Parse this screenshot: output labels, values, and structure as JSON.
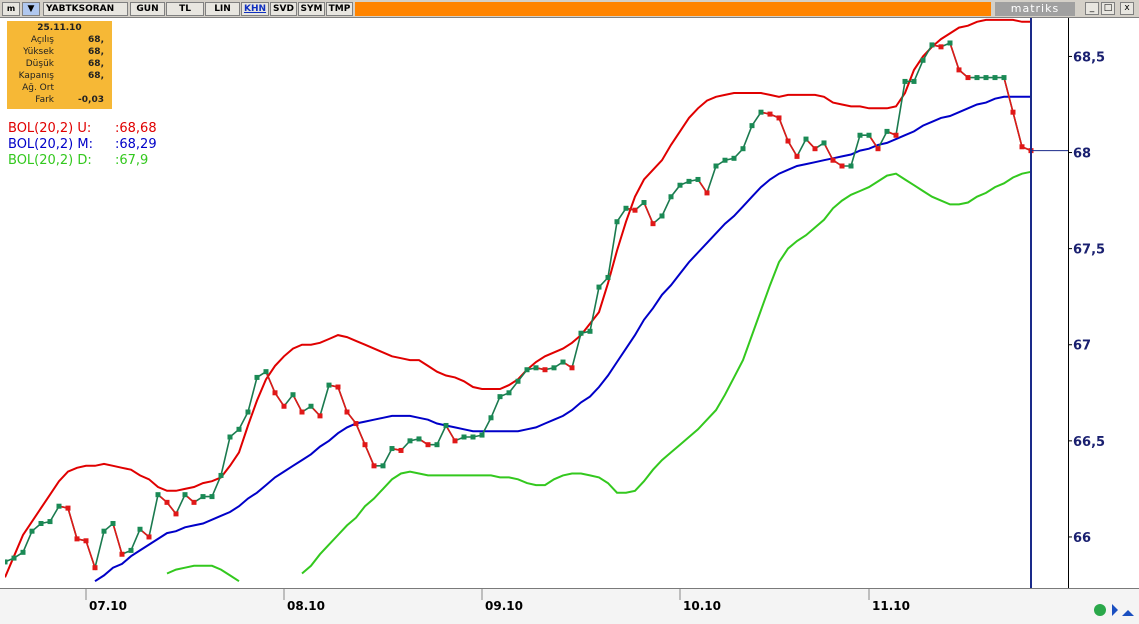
{
  "toolbar": {
    "symbol": "YABTKSORAN",
    "tabs": [
      "GUN",
      "TL",
      "LIN",
      "KHN",
      "SVD",
      "SYM",
      "TMP"
    ],
    "brand": "matriks"
  },
  "info_box": {
    "date": "25.11.10",
    "rows": [
      {
        "label": "Açılış",
        "value": "68,"
      },
      {
        "label": "Yüksek",
        "value": "68,"
      },
      {
        "label": "Düşük",
        "value": "68,"
      },
      {
        "label": "Kapanış",
        "value": "68,"
      },
      {
        "label": "Ağ. Ort"
      },
      {
        "label": "Fark",
        "value": "-0,03"
      }
    ]
  },
  "chart_data": {
    "type": "line",
    "categories": [
      null,
      null,
      null,
      null,
      null,
      null,
      null,
      null,
      null,
      "07.10",
      null,
      null,
      null,
      null,
      null,
      null,
      null,
      null,
      null,
      null,
      null,
      null,
      null,
      null,
      null,
      null,
      null,
      null,
      null,
      null,
      null,
      "08.10",
      null,
      null,
      null,
      null,
      null,
      null,
      null,
      null,
      null,
      null,
      null,
      null,
      null,
      null,
      null,
      null,
      null,
      null,
      null,
      null,
      null,
      "09.10",
      null,
      null,
      null,
      null,
      null,
      null,
      null,
      null,
      null,
      null,
      null,
      null,
      null,
      null,
      null,
      null,
      null,
      null,
      null,
      null,
      null,
      "10.10",
      null,
      null,
      null,
      null,
      null,
      null,
      null,
      null,
      null,
      null,
      null,
      null,
      null,
      null,
      null,
      null,
      null,
      null,
      null,
      null,
      "11.10",
      null,
      null,
      null,
      null,
      null,
      null,
      null,
      null,
      null,
      null,
      null,
      null,
      null,
      null,
      null,
      null,
      null,
      null
    ],
    "series": [
      {
        "color": "#1b7a4f",
        "up_color": "#1a8a55",
        "down_color": "#e01818",
        "values": [
          65.87,
          65.89,
          65.92,
          66.03,
          66.07,
          66.08,
          66.16,
          66.15,
          65.99,
          65.98,
          65.84,
          66.03,
          66.07,
          65.91,
          65.93,
          66.04,
          66.0,
          66.22,
          66.18,
          66.12,
          66.22,
          66.18,
          66.21,
          66.21,
          66.32,
          66.52,
          66.56,
          66.65,
          66.83,
          66.86,
          66.75,
          66.68,
          66.74,
          66.65,
          66.68,
          66.63,
          66.79,
          66.78,
          66.65,
          66.59,
          66.48,
          66.37,
          66.37,
          66.46,
          66.45,
          66.5,
          66.51,
          66.48,
          66.48,
          66.58,
          66.5,
          66.52,
          66.52,
          66.53,
          66.62,
          66.73,
          66.75,
          66.81,
          66.87,
          66.88,
          66.87,
          66.88,
          66.91,
          66.88,
          67.06,
          67.07,
          67.3,
          67.35,
          67.64,
          67.71,
          67.7,
          67.74,
          67.63,
          67.67,
          67.77,
          67.83,
          67.85,
          67.86,
          67.79,
          67.93,
          67.96,
          67.97,
          68.02,
          68.14,
          68.21,
          68.2,
          68.18,
          68.06,
          67.98,
          68.07,
          68.02,
          68.05,
          67.96,
          67.93,
          67.93,
          68.09,
          68.09,
          68.02,
          68.11,
          68.09,
          68.37,
          68.37,
          68.48,
          68.56,
          68.55,
          68.57,
          68.43,
          68.39,
          68.39,
          68.39,
          68.39,
          68.39,
          68.21,
          68.03,
          68.01
        ]
      },
      {
        "name": "BOL(20,2) U:",
        "color": "#e00000",
        "values": [
          65.79,
          65.9,
          66.01,
          66.08,
          66.15,
          66.22,
          66.29,
          66.34,
          66.36,
          66.37,
          66.37,
          66.38,
          66.37,
          66.36,
          66.35,
          66.32,
          66.3,
          66.26,
          66.24,
          66.24,
          66.25,
          66.26,
          66.28,
          66.29,
          66.31,
          66.37,
          66.44,
          66.58,
          66.71,
          66.82,
          66.89,
          66.94,
          66.98,
          67.0,
          67.0,
          67.01,
          67.03,
          67.05,
          67.04,
          67.02,
          67.0,
          66.98,
          66.96,
          66.94,
          66.93,
          66.92,
          66.92,
          66.89,
          66.86,
          66.84,
          66.83,
          66.81,
          66.78,
          66.77,
          66.77,
          66.77,
          66.79,
          66.82,
          66.87,
          66.91,
          66.94,
          66.96,
          66.98,
          67.01,
          67.05,
          67.11,
          67.17,
          67.32,
          67.49,
          67.64,
          67.77,
          67.86,
          67.91,
          67.96,
          68.04,
          68.11,
          68.18,
          68.23,
          68.27,
          68.29,
          68.3,
          68.31,
          68.31,
          68.31,
          68.31,
          68.3,
          68.29,
          68.3,
          68.3,
          68.3,
          68.3,
          68.29,
          68.26,
          68.25,
          68.24,
          68.24,
          68.23,
          68.23,
          68.23,
          68.24,
          68.31,
          68.43,
          68.5,
          68.55,
          68.59,
          68.62,
          68.65,
          68.66,
          68.68,
          68.69,
          68.69,
          68.69,
          68.69,
          68.68,
          68.68
        ],
        "value_labels": [
          null,
          null,
          null,
          null,
          null,
          null,
          null,
          null,
          null,
          null,
          null,
          null,
          null,
          null,
          null,
          null,
          null,
          null,
          null,
          null,
          null,
          null,
          null,
          null,
          null,
          null,
          null,
          null,
          null,
          null,
          null,
          null,
          null,
          null,
          null,
          null,
          null,
          null,
          null,
          null,
          null,
          null,
          null,
          null,
          null,
          null,
          null,
          null,
          null,
          null,
          null,
          null,
          null,
          null,
          null,
          null,
          null,
          null,
          null,
          null,
          null,
          null,
          null,
          null,
          null,
          null,
          null,
          null,
          null,
          null,
          null,
          null,
          null,
          null,
          null,
          null,
          null,
          null,
          null,
          null,
          null,
          null,
          null,
          null,
          null,
          null,
          null,
          null,
          null,
          null,
          null,
          null,
          null,
          null,
          null,
          null,
          null,
          null,
          null,
          null,
          null,
          null,
          null,
          null,
          null,
          null,
          null,
          null,
          null,
          null,
          null,
          null,
          null,
          null,
          ":68,68"
        ]
      },
      {
        "name": "BOL(20,2) M:",
        "color": "#0000c8",
        "values": [
          null,
          null,
          null,
          null,
          null,
          null,
          null,
          null,
          null,
          null,
          65.77,
          65.8,
          65.84,
          65.86,
          65.9,
          65.93,
          65.96,
          65.99,
          66.02,
          66.03,
          66.05,
          66.06,
          66.07,
          66.09,
          66.11,
          66.13,
          66.16,
          66.2,
          66.23,
          66.27,
          66.31,
          66.34,
          66.37,
          66.4,
          66.43,
          66.47,
          66.5,
          66.54,
          66.57,
          66.59,
          66.6,
          66.61,
          66.62,
          66.63,
          66.63,
          66.63,
          66.62,
          66.61,
          66.59,
          66.58,
          66.57,
          66.56,
          66.55,
          66.55,
          66.55,
          66.55,
          66.55,
          66.55,
          66.56,
          66.57,
          66.59,
          66.61,
          66.63,
          66.66,
          66.7,
          66.73,
          66.78,
          66.84,
          66.91,
          66.98,
          67.05,
          67.13,
          67.19,
          67.26,
          67.31,
          67.37,
          67.43,
          67.48,
          67.53,
          67.58,
          67.63,
          67.67,
          67.72,
          67.77,
          67.82,
          67.86,
          67.89,
          67.91,
          67.93,
          67.94,
          67.95,
          67.96,
          67.97,
          67.98,
          67.99,
          68.01,
          68.02,
          68.04,
          68.05,
          68.07,
          68.09,
          68.11,
          68.14,
          68.16,
          68.18,
          68.19,
          68.21,
          68.23,
          68.25,
          68.26,
          68.28,
          68.29,
          68.29,
          68.29,
          68.29
        ],
        "value_labels": [
          null,
          null,
          null,
          null,
          null,
          null,
          null,
          null,
          null,
          null,
          null,
          null,
          null,
          null,
          null,
          null,
          null,
          null,
          null,
          null,
          null,
          null,
          null,
          null,
          null,
          null,
          null,
          null,
          null,
          null,
          null,
          null,
          null,
          null,
          null,
          null,
          null,
          null,
          null,
          null,
          null,
          null,
          null,
          null,
          null,
          null,
          null,
          null,
          null,
          null,
          null,
          null,
          null,
          null,
          null,
          null,
          null,
          null,
          null,
          null,
          null,
          null,
          null,
          null,
          null,
          null,
          null,
          null,
          null,
          null,
          null,
          null,
          null,
          null,
          null,
          null,
          null,
          null,
          null,
          null,
          null,
          null,
          null,
          null,
          null,
          null,
          null,
          null,
          null,
          null,
          null,
          null,
          null,
          null,
          null,
          null,
          null,
          null,
          null,
          null,
          null,
          null,
          null,
          null,
          null,
          null,
          null,
          null,
          null,
          null,
          null,
          null,
          null,
          null,
          ":68,29"
        ]
      },
      {
        "name": "BOL(20,2) D:",
        "color": "#33c81e",
        "values": [
          null,
          null,
          null,
          null,
          null,
          null,
          null,
          null,
          null,
          null,
          null,
          null,
          null,
          null,
          null,
          null,
          null,
          null,
          65.81,
          65.83,
          65.84,
          65.85,
          65.85,
          65.85,
          65.83,
          65.8,
          65.77,
          null,
          null,
          null,
          null,
          null,
          null,
          65.81,
          65.85,
          65.91,
          65.96,
          66.01,
          66.06,
          66.1,
          66.16,
          66.2,
          66.25,
          66.3,
          66.33,
          66.34,
          66.33,
          66.32,
          66.32,
          66.32,
          66.32,
          66.32,
          66.32,
          66.32,
          66.32,
          66.31,
          66.31,
          66.3,
          66.28,
          66.27,
          66.27,
          66.3,
          66.32,
          66.33,
          66.33,
          66.32,
          66.31,
          66.28,
          66.23,
          66.23,
          66.24,
          66.29,
          66.35,
          66.4,
          66.44,
          66.48,
          66.52,
          66.56,
          66.61,
          66.66,
          66.74,
          66.83,
          66.92,
          67.05,
          67.18,
          67.31,
          67.43,
          67.5,
          67.54,
          67.57,
          67.61,
          67.65,
          67.71,
          67.75,
          67.78,
          67.8,
          67.82,
          67.85,
          67.88,
          67.89,
          67.86,
          67.83,
          67.8,
          67.77,
          67.75,
          67.73,
          67.73,
          67.74,
          67.77,
          67.79,
          67.82,
          67.84,
          67.87,
          67.89,
          67.9
        ],
        "value_labels": [
          null,
          null,
          null,
          null,
          null,
          null,
          null,
          null,
          null,
          null,
          null,
          null,
          null,
          null,
          null,
          null,
          null,
          null,
          null,
          null,
          null,
          null,
          null,
          null,
          null,
          null,
          null,
          null,
          null,
          null,
          null,
          null,
          null,
          null,
          null,
          null,
          null,
          null,
          null,
          null,
          null,
          null,
          null,
          null,
          null,
          null,
          null,
          null,
          null,
          null,
          null,
          null,
          null,
          null,
          null,
          null,
          null,
          null,
          null,
          null,
          null,
          null,
          null,
          null,
          null,
          null,
          null,
          null,
          null,
          null,
          null,
          null,
          null,
          null,
          null,
          null,
          null,
          null,
          null,
          null,
          null,
          null,
          null,
          null,
          null,
          null,
          null,
          null,
          null,
          null,
          null,
          null,
          null,
          null,
          null,
          null,
          null,
          null,
          null,
          null,
          null,
          null,
          null,
          null,
          null,
          null,
          null,
          null,
          null,
          null,
          null,
          null,
          null,
          null,
          ":67,9"
        ]
      }
    ],
    "ylim": [
      65.75,
      68.7
    ],
    "yticks": [
      66,
      {
        "value": 66.5,
        "label": "66,5"
      },
      67,
      {
        "value": 67.5,
        "label": "67,5"
      },
      68,
      {
        "value": 68.5,
        "label": "68,5"
      }
    ]
  }
}
